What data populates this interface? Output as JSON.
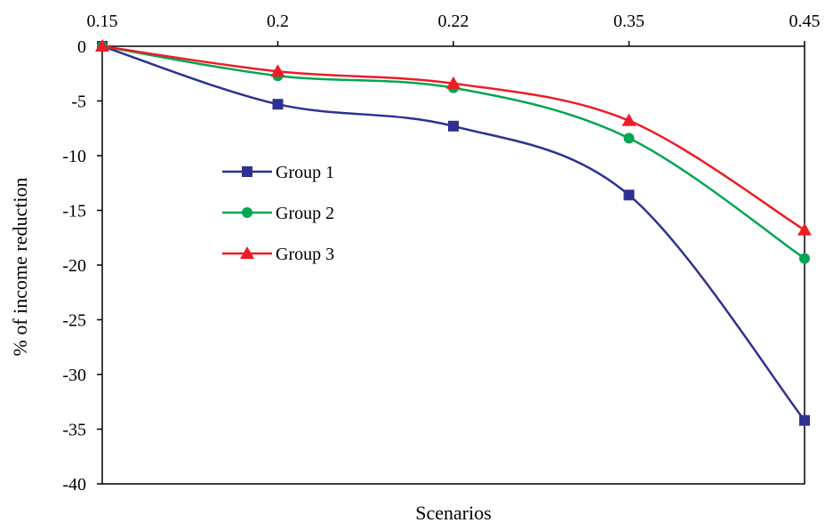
{
  "chart_data": {
    "type": "line",
    "title": "",
    "xlabel": "Scenarios",
    "ylabel": "% of income reduction",
    "x_tick_labels": [
      "0.15",
      "0.2",
      "0.22",
      "0.35",
      "0.45"
    ],
    "x_axis_position": "top",
    "y_ticks": [
      0,
      -5,
      -10,
      -15,
      -20,
      -25,
      -30,
      -35,
      -40
    ],
    "ylim": [
      -40,
      0
    ],
    "grid": false,
    "legend_position": "center-left",
    "series": [
      {
        "name": "Group 1",
        "color": "#2e3192",
        "marker": "square",
        "values": [
          0,
          -5.3,
          -7.3,
          -13.6,
          -34.2
        ]
      },
      {
        "name": "Group 2",
        "color": "#00a651",
        "marker": "circle",
        "values": [
          0,
          -2.7,
          -3.8,
          -8.4,
          -19.4
        ]
      },
      {
        "name": "Group 3",
        "color": "#ed1c24",
        "marker": "triangle",
        "values": [
          0,
          -2.3,
          -3.4,
          -6.8,
          -16.8
        ]
      }
    ]
  }
}
